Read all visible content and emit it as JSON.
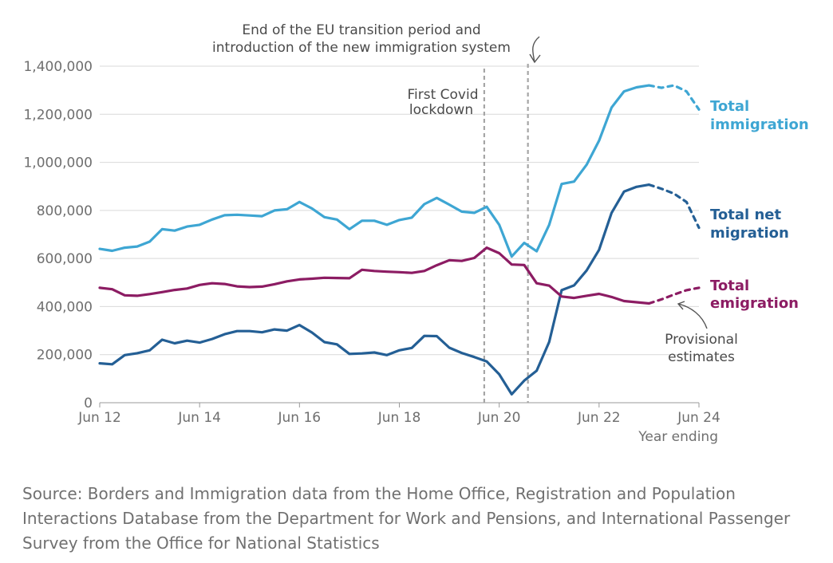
{
  "chart_data": {
    "type": "line",
    "x_start": "Jun 12",
    "x_tick_labels": [
      "Jun 12",
      "Jun 14",
      "Jun 16",
      "Jun 18",
      "Jun 20",
      "Jun 22",
      "Jun 24"
    ],
    "x_label": "Year ending",
    "ylim": [
      0,
      1400000
    ],
    "y_ticks": [
      0,
      200000,
      400000,
      600000,
      800000,
      1000000,
      1200000,
      1400000
    ],
    "y_tick_labels": [
      "0",
      "200,000",
      "400,000",
      "600,000",
      "800,000",
      "1,000,000",
      "1,200,000",
      "1,400,000"
    ],
    "grid": true,
    "colors": {
      "immigration": "#3ea6d3",
      "net": "#245f95",
      "emigration": "#8c1c63",
      "grid": "#d9d9d9",
      "vline": "#a6a6a6"
    },
    "series": [
      {
        "name": "Total immigration",
        "color": "#3ea6d3",
        "values": [
          640000,
          632000,
          645000,
          650000,
          670000,
          722000,
          716000,
          733000,
          740000,
          762000,
          780000,
          782000,
          779000,
          776000,
          800000,
          805000,
          835000,
          808000,
          772000,
          762000,
          722000,
          757000,
          757000,
          740000,
          760000,
          770000,
          826000,
          852000,
          824000,
          795000,
          790000,
          815000,
          740000,
          608000,
          665000,
          630000,
          740000,
          910000,
          920000,
          990000,
          1090000,
          1228000,
          1295000,
          1312000,
          1320000
        ],
        "provisional": [
          1320000,
          1310000,
          1320000,
          1295000,
          1220000
        ]
      },
      {
        "name": "Total net migration",
        "color": "#245f95",
        "values": [
          164000,
          160000,
          198000,
          206000,
          218000,
          262000,
          247000,
          258000,
          250000,
          265000,
          285000,
          298000,
          298000,
          293000,
          305000,
          300000,
          323000,
          292000,
          252000,
          243000,
          203000,
          205000,
          209000,
          198000,
          218000,
          228000,
          278000,
          277000,
          229000,
          207000,
          190000,
          172000,
          118000,
          35000,
          92000,
          133000,
          253000,
          468000,
          488000,
          550000,
          636000,
          790000,
          878000,
          898000,
          907000
        ],
        "provisional": [
          907000,
          890000,
          870000,
          835000,
          728000
        ]
      },
      {
        "name": "Total emigration",
        "color": "#8c1c63",
        "values": [
          478000,
          472000,
          447000,
          445000,
          452000,
          460000,
          469000,
          475000,
          490000,
          497000,
          494000,
          484000,
          481000,
          483000,
          493000,
          505000,
          513000,
          516000,
          520000,
          519000,
          518000,
          553000,
          548000,
          545000,
          543000,
          540000,
          548000,
          572000,
          593000,
          590000,
          602000,
          645000,
          622000,
          575000,
          573000,
          497000,
          487000,
          442000,
          436000,
          445000,
          453000,
          440000,
          423000,
          418000,
          413000
        ],
        "provisional": [
          413000,
          430000,
          450000,
          468000,
          478000
        ]
      }
    ],
    "vlines": [
      {
        "x_index": 30.8,
        "label_lines": [
          "First Covid",
          "lockdown"
        ]
      },
      {
        "x_index": 34.3,
        "label_lines": [
          "End of the EU transition period and",
          "introduction of the new immigration system"
        ]
      }
    ],
    "series_labels": {
      "immigration": [
        "Total",
        "immigration"
      ],
      "net": [
        "Total net",
        "migration"
      ],
      "emigration": [
        "Total",
        "emigration"
      ]
    },
    "provisional_note": [
      "Provisional",
      "estimates"
    ]
  },
  "source": "Source: Borders and Immigration data from the Home Office, Registration and Population Interactions Database from the Department for Work and Pensions, and International Passenger Survey from the Office for National Statistics"
}
